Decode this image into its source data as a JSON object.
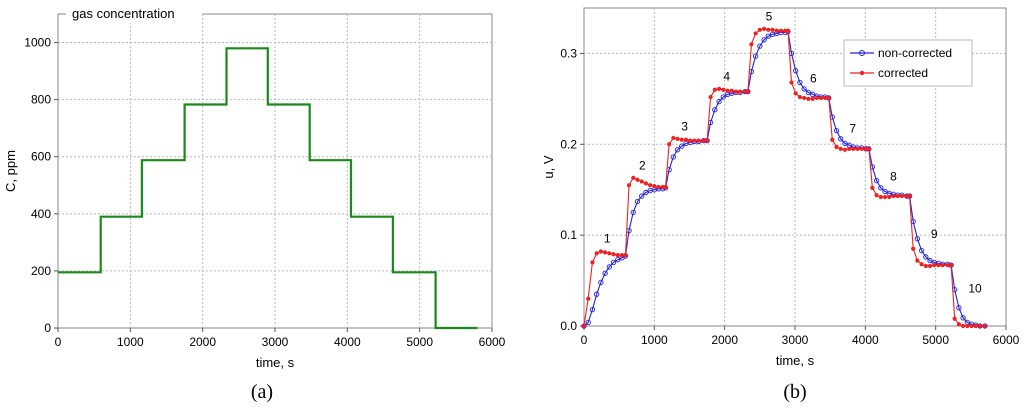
{
  "chart_data": [
    {
      "type": "line",
      "title": "gas concentration",
      "xlabel": "time, s",
      "ylabel": "C, ppm",
      "xlim": [
        0,
        6000
      ],
      "ylim": [
        0,
        1100
      ],
      "x_ticks": [
        "0",
        "1000",
        "2000",
        "3000",
        "4000",
        "5000",
        "6000"
      ],
      "y_ticks": [
        "0",
        "200",
        "400",
        "600",
        "800",
        "1000"
      ],
      "grid": true,
      "panel_label": "(a)",
      "series": [
        {
          "color": "#1a8a1a",
          "x": [
            0,
            590,
            590,
            1160,
            1160,
            1750,
            1750,
            2330,
            2330,
            2900,
            2900,
            3480,
            3480,
            4050,
            4050,
            4630,
            4630,
            5220,
            5220,
            5800
          ],
          "y": [
            195,
            195,
            390,
            390,
            588,
            588,
            783,
            783,
            980,
            980,
            783,
            783,
            588,
            588,
            390,
            390,
            195,
            195,
            0,
            0
          ]
        }
      ]
    },
    {
      "type": "line",
      "xlabel": "time, s",
      "ylabel": "u, V",
      "xlim": [
        0,
        6000
      ],
      "ylim": [
        0,
        0.35
      ],
      "x_ticks": [
        "0",
        "1000",
        "2000",
        "3000",
        "4000",
        "5000",
        "6000"
      ],
      "y_ticks": [
        "0.0",
        "0.1",
        "0.2",
        "0.3"
      ],
      "grid": true,
      "legend_position": "top-right",
      "panel_label": "(b)",
      "series": [
        {
          "name": "non-corrected",
          "color": "#2222dd",
          "x": [
            0,
            60,
            120,
            180,
            240,
            300,
            360,
            420,
            480,
            540,
            590,
            640,
            700,
            760,
            820,
            880,
            940,
            1000,
            1060,
            1120,
            1160,
            1210,
            1270,
            1330,
            1390,
            1450,
            1510,
            1570,
            1630,
            1700,
            1750,
            1800,
            1860,
            1920,
            1980,
            2040,
            2100,
            2160,
            2220,
            2290,
            2330,
            2380,
            2440,
            2500,
            2560,
            2620,
            2680,
            2740,
            2800,
            2860,
            2900,
            2950,
            3010,
            3070,
            3130,
            3190,
            3250,
            3310,
            3370,
            3430,
            3480,
            3530,
            3590,
            3650,
            3710,
            3770,
            3830,
            3890,
            3950,
            4010,
            4050,
            4100,
            4160,
            4220,
            4280,
            4340,
            4400,
            4460,
            4520,
            4590,
            4630,
            4680,
            4740,
            4800,
            4860,
            4920,
            4980,
            5040,
            5100,
            5170,
            5220,
            5270,
            5330,
            5390,
            5450,
            5510,
            5570,
            5630,
            5700
          ],
          "y": [
            0.0,
            0.004,
            0.018,
            0.035,
            0.048,
            0.058,
            0.065,
            0.07,
            0.073,
            0.075,
            0.077,
            0.105,
            0.125,
            0.137,
            0.143,
            0.147,
            0.149,
            0.15,
            0.151,
            0.151,
            0.152,
            0.172,
            0.186,
            0.194,
            0.198,
            0.201,
            0.202,
            0.203,
            0.203,
            0.204,
            0.204,
            0.224,
            0.238,
            0.247,
            0.252,
            0.255,
            0.256,
            0.257,
            0.257,
            0.258,
            0.258,
            0.28,
            0.297,
            0.308,
            0.315,
            0.319,
            0.321,
            0.322,
            0.323,
            0.323,
            0.324,
            0.3,
            0.281,
            0.268,
            0.261,
            0.257,
            0.255,
            0.253,
            0.252,
            0.252,
            0.251,
            0.23,
            0.215,
            0.206,
            0.201,
            0.199,
            0.197,
            0.196,
            0.196,
            0.195,
            0.195,
            0.175,
            0.16,
            0.152,
            0.148,
            0.146,
            0.145,
            0.144,
            0.144,
            0.143,
            0.143,
            0.115,
            0.096,
            0.083,
            0.076,
            0.072,
            0.07,
            0.069,
            0.068,
            0.068,
            0.067,
            0.04,
            0.02,
            0.009,
            0.004,
            0.002,
            0.001,
            0.0,
            0.0
          ]
        },
        {
          "name": "corrected",
          "color": "#ee2222",
          "x": [
            0,
            60,
            120,
            180,
            240,
            300,
            360,
            420,
            480,
            540,
            590,
            640,
            700,
            760,
            820,
            880,
            940,
            1000,
            1060,
            1120,
            1160,
            1210,
            1270,
            1330,
            1390,
            1450,
            1510,
            1570,
            1630,
            1700,
            1750,
            1800,
            1860,
            1920,
            1980,
            2040,
            2100,
            2160,
            2220,
            2290,
            2330,
            2380,
            2440,
            2500,
            2560,
            2620,
            2680,
            2740,
            2800,
            2860,
            2900,
            2950,
            3010,
            3070,
            3130,
            3190,
            3250,
            3310,
            3370,
            3430,
            3480,
            3530,
            3590,
            3650,
            3710,
            3770,
            3830,
            3890,
            3950,
            4010,
            4050,
            4100,
            4160,
            4220,
            4280,
            4340,
            4400,
            4460,
            4520,
            4590,
            4630,
            4680,
            4740,
            4800,
            4860,
            4920,
            4980,
            5040,
            5100,
            5170,
            5220,
            5270,
            5330,
            5390,
            5450,
            5510,
            5570,
            5630,
            5700
          ],
          "y": [
            0.0,
            0.03,
            0.07,
            0.08,
            0.082,
            0.081,
            0.08,
            0.079,
            0.078,
            0.078,
            0.078,
            0.155,
            0.163,
            0.161,
            0.159,
            0.157,
            0.155,
            0.154,
            0.153,
            0.153,
            0.153,
            0.2,
            0.207,
            0.206,
            0.205,
            0.205,
            0.204,
            0.204,
            0.204,
            0.204,
            0.204,
            0.252,
            0.26,
            0.261,
            0.26,
            0.259,
            0.259,
            0.258,
            0.258,
            0.258,
            0.258,
            0.31,
            0.322,
            0.326,
            0.327,
            0.326,
            0.326,
            0.325,
            0.325,
            0.325,
            0.325,
            0.268,
            0.256,
            0.252,
            0.251,
            0.25,
            0.25,
            0.251,
            0.251,
            0.251,
            0.251,
            0.205,
            0.197,
            0.195,
            0.194,
            0.195,
            0.195,
            0.195,
            0.195,
            0.195,
            0.195,
            0.152,
            0.144,
            0.142,
            0.142,
            0.142,
            0.143,
            0.143,
            0.143,
            0.143,
            0.143,
            0.085,
            0.072,
            0.068,
            0.066,
            0.066,
            0.067,
            0.067,
            0.067,
            0.067,
            0.067,
            0.008,
            0.002,
            0.0,
            0.0,
            0.0,
            0.0,
            0.0,
            0.0
          ]
        }
      ],
      "annotations": [
        {
          "text": "1",
          "x": 330,
          "y": 0.092
        },
        {
          "text": "2",
          "x": 830,
          "y": 0.172
        },
        {
          "text": "3",
          "x": 1430,
          "y": 0.215
        },
        {
          "text": "4",
          "x": 2030,
          "y": 0.27
        },
        {
          "text": "5",
          "x": 2630,
          "y": 0.336
        },
        {
          "text": "6",
          "x": 3260,
          "y": 0.268
        },
        {
          "text": "7",
          "x": 3820,
          "y": 0.213
        },
        {
          "text": "8",
          "x": 4400,
          "y": 0.16
        },
        {
          "text": "9",
          "x": 4980,
          "y": 0.097
        },
        {
          "text": "10",
          "x": 5560,
          "y": 0.037
        }
      ]
    }
  ]
}
